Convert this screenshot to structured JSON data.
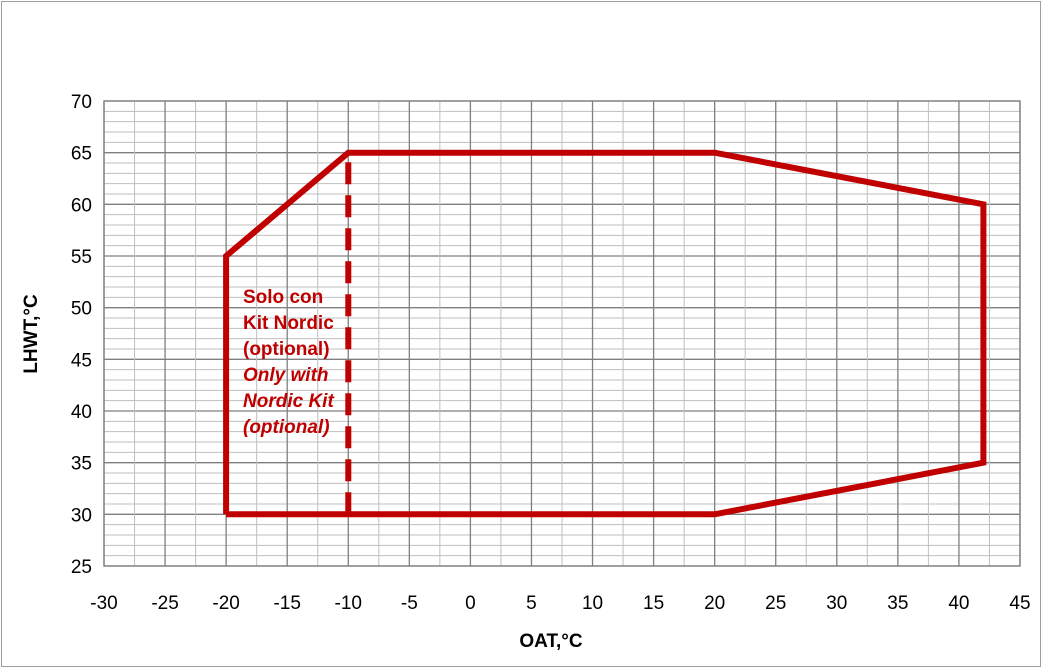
{
  "chart_data": {
    "type": "line",
    "xlabel": "OAT,°C",
    "ylabel": "LHWT,°C",
    "xlim": [
      -30,
      45
    ],
    "ylim": [
      25,
      70
    ],
    "x_ticks": [
      -30,
      -25,
      -20,
      -15,
      -10,
      -5,
      0,
      5,
      10,
      15,
      20,
      25,
      30,
      35,
      40,
      45
    ],
    "y_ticks": [
      25,
      30,
      35,
      40,
      45,
      50,
      55,
      60,
      65,
      70
    ],
    "grid": true,
    "legend": "none",
    "series": [
      {
        "color": "#c00000",
        "points": [
          {
            "x": -20,
            "y": 30
          },
          {
            "x": -20,
            "y": 55
          },
          {
            "x": -10,
            "y": 65
          },
          {
            "x": 20,
            "y": 65
          },
          {
            "x": 42,
            "y": 60
          },
          {
            "x": 42,
            "y": 35
          },
          {
            "x": 20,
            "y": 30
          },
          {
            "x": -20,
            "y": 30
          }
        ]
      },
      {
        "color": "#c00000",
        "style": "dashed",
        "points": [
          {
            "x": -10,
            "y": 30
          },
          {
            "x": -10,
            "y": 65
          }
        ]
      }
    ],
    "annotations": [
      "Solo con",
      "Kit Nordic",
      "(optional)",
      "Only with",
      "Nordic Kit",
      "(optional)"
    ]
  }
}
